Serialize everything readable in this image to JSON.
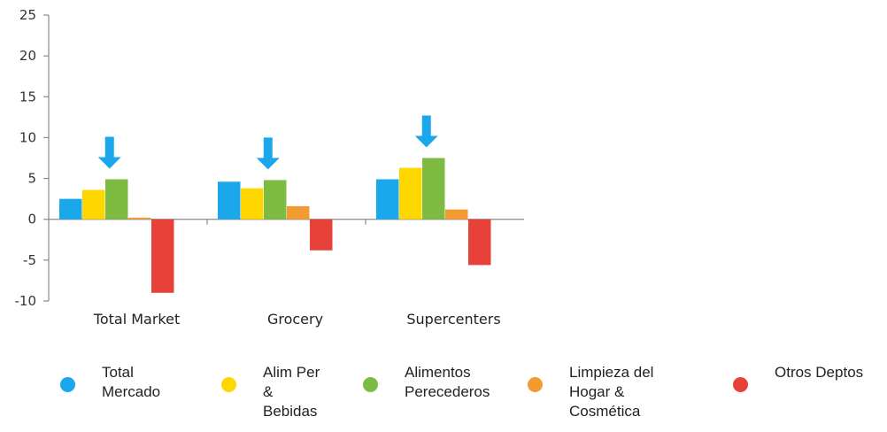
{
  "chart_data": {
    "type": "bar",
    "categories": [
      "Total Market",
      "Grocery",
      "Supercenters"
    ],
    "series": [
      {
        "name": "Total Mercado",
        "color": "#1aa7ec",
        "values": [
          2.5,
          4.6,
          4.9
        ]
      },
      {
        "name": "Alim Per & Bebidas",
        "color": "#ffd700",
        "values": [
          3.6,
          3.8,
          6.3
        ]
      },
      {
        "name": "Alimentos Perecederos",
        "color": "#7dbb42",
        "values": [
          4.9,
          4.8,
          7.5
        ]
      },
      {
        "name": "Limpieza del Hogar & Cosmética",
        "color": "#f39a32",
        "values": [
          0.2,
          1.6,
          1.2
        ]
      },
      {
        "name": "Otros Deptos",
        "color": "#e8413a",
        "values": [
          -9.0,
          -3.8,
          -5.6
        ]
      }
    ],
    "ylim": [
      -10,
      25
    ],
    "yticks": [
      25,
      20,
      15,
      10,
      5,
      0,
      -5,
      -10
    ],
    "title": "",
    "xlabel": "",
    "ylabel": "",
    "grid": false,
    "annotations": [
      {
        "type": "down-arrow-icon",
        "category": "Total Market",
        "series": "Alimentos Perecederos"
      },
      {
        "type": "down-arrow-icon",
        "category": "Grocery",
        "series": "Alimentos Perecederos"
      },
      {
        "type": "down-arrow-icon",
        "category": "Supercenters",
        "series": "Alimentos Perecederos"
      }
    ],
    "legend_position": "bottom",
    "arrow_color": "#1aa7ec"
  },
  "legend": {
    "items": [
      {
        "label": "Total\nMercado",
        "color": "#1aa7ec"
      },
      {
        "label": "Alim Per\n&\nBebidas",
        "color": "#ffd700"
      },
      {
        "label": "Alimentos\nPerecederos",
        "color": "#7dbb42"
      },
      {
        "label": "Limpieza del\nHogar &\nCosmética",
        "color": "#f39a32"
      },
      {
        "label": "Otros Deptos",
        "color": "#e8413a"
      }
    ]
  }
}
